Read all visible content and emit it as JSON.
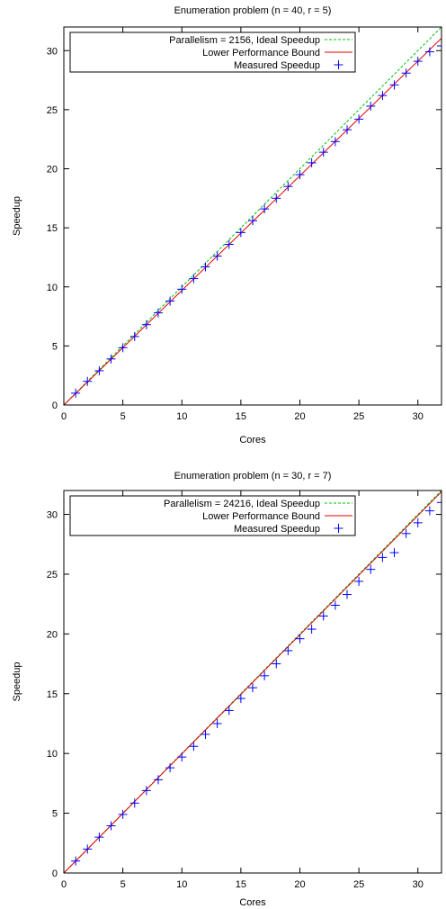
{
  "chart_data": [
    {
      "type": "line",
      "title": "Enumeration problem (n = 40, r = 5)",
      "xlabel": "Cores",
      "ylabel": "Speedup",
      "xlim": [
        0,
        32
      ],
      "ylim": [
        0,
        32
      ],
      "xticks": [
        0,
        5,
        10,
        15,
        20,
        25,
        30
      ],
      "yticks": [
        0,
        5,
        10,
        15,
        20,
        25,
        30
      ],
      "grid": false,
      "legend_position": "top-left",
      "series": [
        {
          "name": "Parallelism = 2156, Ideal Speedup",
          "kind": "line",
          "style": "dashed",
          "color": "#00c000",
          "x": [
            0,
            32
          ],
          "y": [
            0,
            32
          ]
        },
        {
          "name": "Lower Performance Bound",
          "kind": "line",
          "style": "solid",
          "color": "#e00000",
          "x": [
            0,
            32
          ],
          "y": [
            0,
            31.05
          ]
        },
        {
          "name": "Measured Speedup",
          "kind": "scatter",
          "marker": "plus",
          "color": "#0000ff",
          "x": [
            1,
            2,
            3,
            4,
            5,
            6,
            7,
            8,
            9,
            10,
            11,
            12,
            13,
            14,
            15,
            16,
            17,
            18,
            19,
            20,
            21,
            22,
            23,
            24,
            25,
            26,
            27,
            28,
            29,
            30,
            31,
            32
          ],
          "y": [
            1.0,
            2.0,
            2.9,
            3.9,
            4.85,
            5.8,
            6.8,
            7.8,
            8.8,
            9.8,
            10.7,
            11.7,
            12.6,
            13.6,
            14.6,
            15.6,
            16.6,
            17.5,
            18.5,
            19.5,
            20.5,
            21.4,
            22.3,
            23.3,
            24.2,
            25.3,
            26.2,
            27.1,
            28.1,
            29.1,
            29.9,
            30.4
          ]
        }
      ]
    },
    {
      "type": "line",
      "title": "Enumeration problem (n = 30, r = 7)",
      "xlabel": "Cores",
      "ylabel": "Speedup",
      "xlim": [
        0,
        32
      ],
      "ylim": [
        0,
        32
      ],
      "xticks": [
        0,
        5,
        10,
        15,
        20,
        25,
        30
      ],
      "yticks": [
        0,
        5,
        10,
        15,
        20,
        25,
        30
      ],
      "grid": false,
      "legend_position": "top-left",
      "series": [
        {
          "name": "Parallelism = 24216, Ideal Speedup",
          "kind": "line",
          "style": "dashed",
          "color": "#00c000",
          "x": [
            0,
            32
          ],
          "y": [
            0,
            32
          ]
        },
        {
          "name": "Lower Performance Bound",
          "kind": "line",
          "style": "solid",
          "color": "#e00000",
          "x": [
            0,
            32
          ],
          "y": [
            0,
            31.9
          ]
        },
        {
          "name": "Measured Speedup",
          "kind": "scatter",
          "marker": "plus",
          "color": "#0000ff",
          "x": [
            1,
            2,
            3,
            4,
            5,
            6,
            7,
            8,
            9,
            10,
            11,
            12,
            13,
            14,
            15,
            16,
            17,
            18,
            19,
            20,
            21,
            22,
            23,
            24,
            25,
            26,
            27,
            28,
            29,
            30,
            31,
            32
          ],
          "y": [
            1.0,
            2.0,
            3.0,
            3.95,
            4.9,
            5.85,
            6.9,
            7.8,
            8.8,
            9.7,
            10.6,
            11.6,
            12.5,
            13.6,
            14.6,
            15.5,
            16.5,
            17.5,
            18.6,
            19.6,
            20.4,
            21.5,
            22.4,
            23.3,
            24.4,
            25.4,
            26.4,
            26.8,
            28.4,
            29.3,
            30.3,
            31.0
          ]
        }
      ]
    }
  ]
}
